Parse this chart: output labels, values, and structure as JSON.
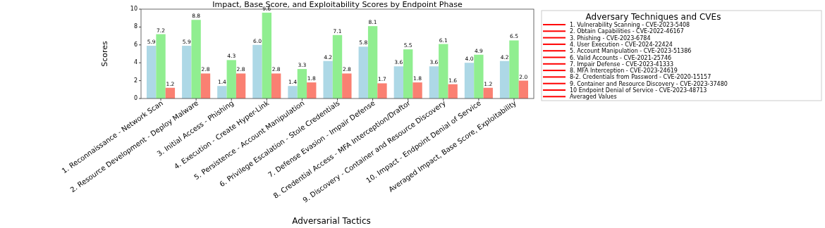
{
  "chart_data": {
    "type": "bar",
    "title": "Impact, Base Score, and Exploitability Scores by Endpoint Phase",
    "xlabel": "Adversarial Tactics",
    "ylabel": "Scores",
    "categories": [
      "1. Reconnaissance - Network Scan",
      "2. Resource Development - Deploy Malware",
      "3. Initial Access - Phishing",
      "4. Execution - Create Hyper-Link",
      "5. Persistence - Account Manipulation",
      "6. Privilege Escalation - Stole Credentials",
      "7. Defense Evasion - Impair Defense",
      "8. Credential Access - MFA Interception/Draftor",
      "9. Discovery - Container and Resource Discovery",
      "10. Impact - Endpoint Denial of Service",
      "Averaged Impact, Base Score, Exploitability"
    ],
    "series": [
      {
        "color": "#add8e6",
        "values": [
          5.9,
          5.9,
          1.4,
          6.0,
          1.4,
          4.2,
          5.8,
          3.6,
          3.6,
          4.0,
          4.2
        ],
        "value_labels": [
          "5.9",
          "5.9",
          "1.4",
          "6.0",
          "1.4",
          "4.2",
          "5.8",
          "3.6",
          "3.6",
          "4.0",
          "4.2"
        ]
      },
      {
        "color": "#90ee90",
        "values": [
          7.2,
          8.8,
          4.3,
          9.6,
          3.3,
          7.1,
          8.1,
          5.5,
          6.1,
          4.9,
          6.5
        ],
        "value_labels": [
          "7.2",
          "8.8",
          "4.3",
          "9.6",
          "3.3",
          "7.1",
          "8.1",
          "5.5",
          "6.1",
          "4.9",
          "6.5"
        ]
      },
      {
        "color": "#fa8072",
        "values": [
          1.2,
          2.8,
          2.8,
          2.8,
          1.8,
          2.8,
          1.7,
          1.8,
          1.6,
          1.2,
          2.0
        ],
        "value_labels": [
          "1.2",
          "2.8",
          "2.8",
          "2.8",
          "1.8",
          "2.8",
          "1.7",
          "1.8",
          "1.6",
          "1.2",
          "2.0"
        ]
      }
    ],
    "ylim": [
      0,
      10
    ],
    "yticks": [
      0,
      2,
      4,
      6,
      8,
      10
    ],
    "grid": false,
    "legend_title": "Adversary Techniques and CVEs",
    "annotations": [
      "1. Vulnerability Scanning - CVE-2023-5408",
      "2. Obtain Capabilities - CVE-2022-46167",
      "3. Phishing - CVE-2023-6784",
      "4. User Execution - CVE-2024-22424",
      "5. Account Manipulation - CVE-2023-51386",
      "6. Valid Accounts - CVE-2021-25746",
      "7. Impair Defense - CVE-2023-41333",
      "8. MFA Interception - CVE-2023-24619",
      "8-2. Credentials from Password - CVE-2020-15157",
      "9. Container and Resource Discovery - CVE-2023-37480",
      "10 Endpoint Denial of Service - CVE-2023-48713",
      "Averaged Values"
    ]
  }
}
